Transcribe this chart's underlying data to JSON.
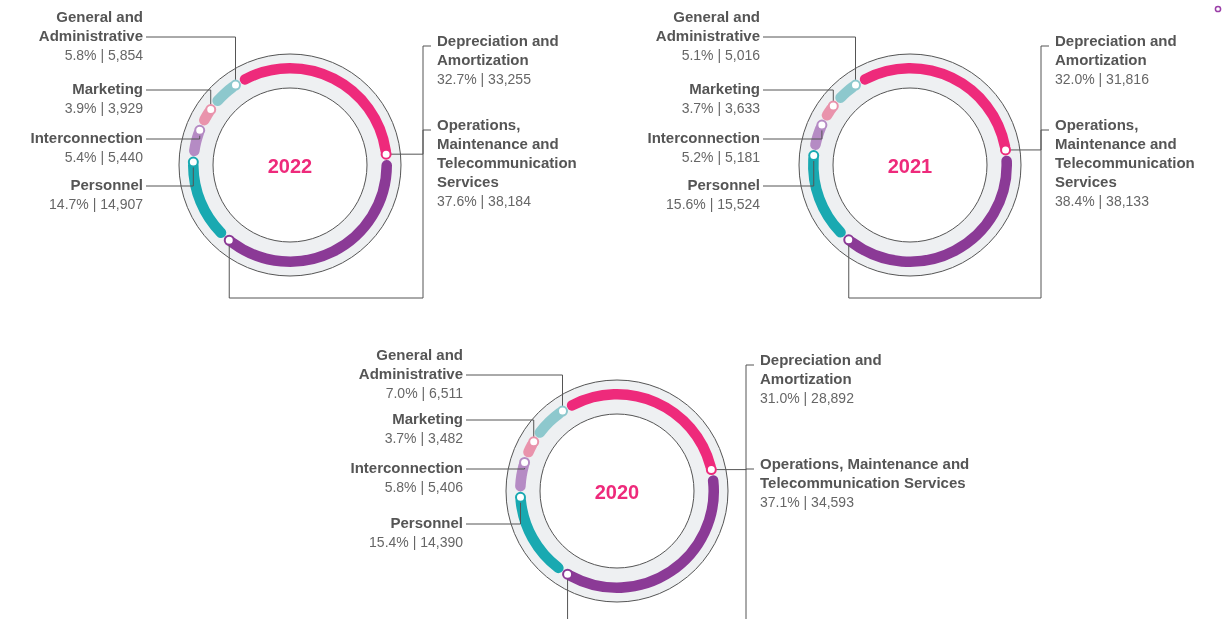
{
  "chart_data": [
    {
      "type": "donut",
      "title": "2022",
      "categories": [
        "Depreciation and Amortization",
        "Operations, Maintenance and Telecommunication Services",
        "Personnel",
        "Interconnection",
        "Marketing",
        "General and Administrative"
      ],
      "values": [
        33255,
        38184,
        14907,
        5440,
        3929,
        5854
      ],
      "value_labels": [
        "32.7% | 33,255",
        "37.6% | 38,184",
        "14.7% | 14,907",
        "5.4% | 5,440",
        "3.9% | 3,929",
        "5.8% | 5,854"
      ],
      "colors": [
        "#ee2a7b",
        "#8b3a96",
        "#19a9b1",
        "#b58bc4",
        "#e993ac",
        "#8dc8cd"
      ],
      "legend": false
    },
    {
      "type": "donut",
      "title": "2021",
      "categories": [
        "Depreciation and Amortization",
        "Operations, Maintenance and Telecommunication Services",
        "Personnel",
        "Interconnection",
        "Marketing",
        "General and Administrative"
      ],
      "values": [
        31816,
        38133,
        15524,
        5181,
        3633,
        5016
      ],
      "value_labels": [
        "32.0% | 31,816",
        "38.4% | 38,133",
        "15.6% | 15,524",
        "5.2% | 5,181",
        "3.7% | 3,633",
        "5.1% | 5,016"
      ],
      "colors": [
        "#ee2a7b",
        "#8b3a96",
        "#19a9b1",
        "#b58bc4",
        "#e993ac",
        "#8dc8cd"
      ],
      "legend": false
    },
    {
      "type": "donut",
      "title": "2020",
      "categories": [
        "Depreciation and Amortization",
        "Operations, Maintenance and Telecommunication Services",
        "Personnel",
        "Interconnection",
        "Marketing",
        "General and Administrative"
      ],
      "values": [
        28892,
        34593,
        14390,
        5406,
        3482,
        6511
      ],
      "value_labels": [
        "31.0% | 28,892",
        "37.1% | 34,593",
        "15.4% | 14,390",
        "5.8% | 5,406",
        "3.7% | 3,482",
        "7.0% | 6,511"
      ],
      "colors": [
        "#ee2a7b",
        "#8b3a96",
        "#19a9b1",
        "#b58bc4",
        "#e993ac",
        "#8dc8cd"
      ],
      "legend": false
    }
  ]
}
